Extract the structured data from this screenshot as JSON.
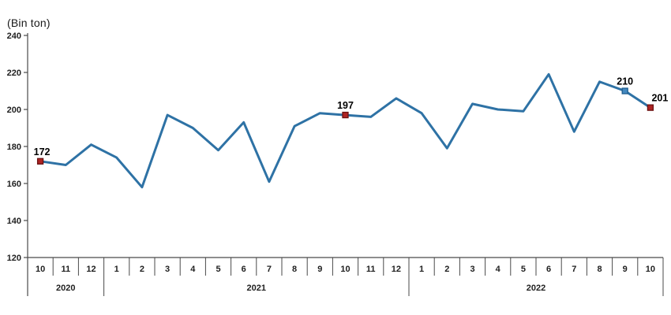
{
  "chart_data": {
    "type": "line",
    "title": "(Bin ton)",
    "xlabel": "",
    "ylabel": "(Bin ton)",
    "ylim": [
      120,
      240
    ],
    "yticks": [
      240,
      220,
      200,
      180,
      160,
      140,
      120
    ],
    "grid": false,
    "legend": null,
    "groups": [
      {
        "year": "2020",
        "months": [
          "10",
          "11",
          "12"
        ]
      },
      {
        "year": "2021",
        "months": [
          "1",
          "2",
          "3",
          "4",
          "5",
          "6",
          "7",
          "8",
          "9",
          "10",
          "11",
          "12"
        ]
      },
      {
        "year": "2022",
        "months": [
          "1",
          "2",
          "3",
          "4",
          "5",
          "6",
          "7",
          "8",
          "9",
          "10"
        ]
      }
    ],
    "values": [
      172,
      170,
      181,
      174,
      158,
      197,
      190,
      178,
      193,
      161,
      191,
      198,
      197,
      196,
      206,
      198,
      179,
      203,
      200,
      199,
      219,
      188,
      215,
      210,
      201
    ],
    "annotations": [
      {
        "index": 0,
        "label": "172",
        "marker": "red",
        "dx": 2
      },
      {
        "index": 12,
        "label": "197",
        "marker": "red",
        "dx": 0
      },
      {
        "index": 23,
        "label": "210",
        "marker": "blue",
        "dx": 0
      },
      {
        "index": 24,
        "label": "201",
        "marker": "red",
        "dx": 12
      }
    ],
    "colors": {
      "line": "#2E72A5",
      "marker_red_fill": "#AE2424",
      "marker_red_stroke": "#6B1212",
      "marker_blue_fill": "#4489BF",
      "marker_blue_stroke": "#1F5E8F",
      "axis": "#4a4a4a",
      "text": "#1f1f1f"
    }
  }
}
